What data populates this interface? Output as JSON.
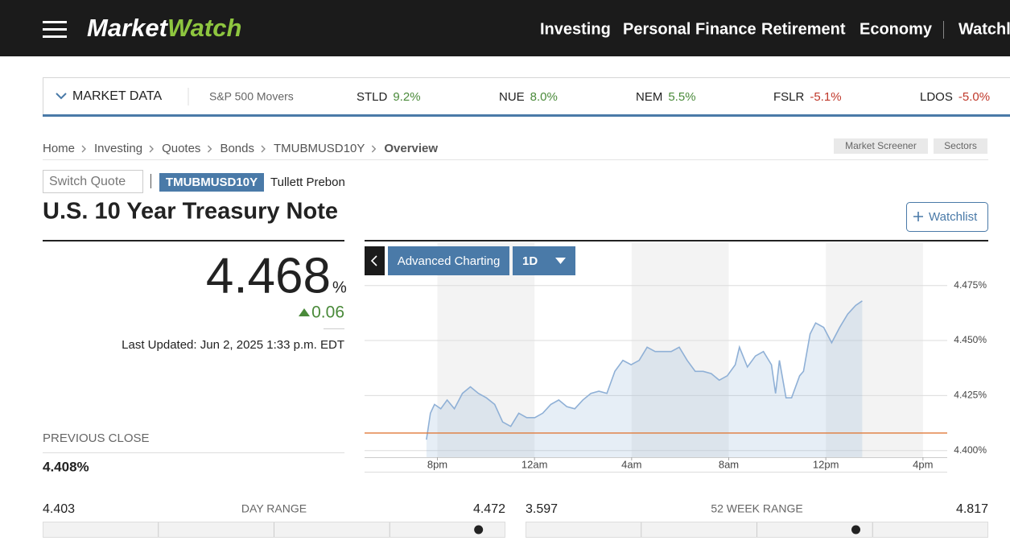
{
  "header": {
    "brand": [
      "Market",
      "Watch"
    ],
    "nav": [
      "Investing",
      "Personal Finance",
      "Retirement",
      "Economy",
      "Watchlist"
    ]
  },
  "ticker_bar": {
    "label": "MARKET DATA",
    "group": "S&P 500 Movers",
    "items": [
      {
        "symbol": "STLD",
        "change": "9.2%"
      },
      {
        "symbol": "NUE",
        "change": "8.0%"
      },
      {
        "symbol": "NEM",
        "change": "5.5%"
      },
      {
        "symbol": "FSLR",
        "change": "-5.1%"
      },
      {
        "symbol": "LDOS",
        "change": "-5.0%"
      }
    ]
  },
  "breadcrumb": [
    "Home",
    "Investing",
    "Quotes",
    "Bonds",
    "TMUBMUSD10Y",
    "Overview"
  ],
  "tools": [
    "Market Screener",
    "Sectors"
  ],
  "quote": {
    "search_placeholder": "Switch Quote",
    "symbol": "TMUBMUSD10Y",
    "source": "Tullett Prebon",
    "title": "U.S. 10 Year Treasury Note",
    "watchlist_button": "Watchlist",
    "price": "4.468",
    "price_unit": "%",
    "change": "0.06",
    "last_updated": "Last Updated: Jun 2, 2025 1:33 p.m. EDT",
    "previous_close_label": "PREVIOUS CLOSE",
    "previous_close": "4.408%",
    "day_range": {
      "low": "4.403",
      "label": "DAY RANGE",
      "high": "4.472"
    },
    "week52_range": {
      "low": "3.597",
      "label": "52 WEEK RANGE",
      "high": "4.817"
    }
  },
  "chart_controls": {
    "advanced": "Advanced Charting",
    "period": "1D"
  },
  "chart_data": {
    "type": "line",
    "x": [
      -4.45,
      -4.29,
      -4.12,
      -3.86,
      -3.6,
      -3.3,
      -2.97,
      -2.64,
      -2.31,
      -1.98,
      -1.64,
      -1.31,
      -0.98,
      -0.65,
      -0.32,
      0.01,
      0.34,
      0.67,
      1.0,
      1.33,
      1.66,
      1.99,
      2.32,
      2.65,
      2.98,
      3.31,
      3.64,
      3.98,
      4.31,
      4.64,
      4.97,
      5.3,
      5.63,
      5.96,
      6.29,
      6.62,
      6.95,
      7.28,
      7.61,
      7.94,
      8.27,
      8.44,
      8.77,
      9.1,
      9.43,
      9.76,
      9.93,
      10.09,
      10.36,
      10.59,
      10.92,
      11.08,
      11.35,
      11.58,
      11.91,
      12.24,
      12.57,
      12.9,
      13.23,
      13.5
    ],
    "series": [
      {
        "color": "#8fb0d6",
        "values": [
          4.405,
          4.417,
          4.421,
          4.419,
          4.423,
          4.419,
          4.426,
          4.429,
          4.426,
          4.424,
          4.421,
          4.413,
          4.411,
          4.417,
          4.415,
          4.415,
          4.417,
          4.421,
          4.423,
          4.42,
          4.419,
          4.423,
          4.426,
          4.427,
          4.426,
          4.436,
          4.441,
          4.439,
          4.441,
          4.447,
          4.445,
          4.445,
          4.445,
          4.447,
          4.441,
          4.436,
          4.436,
          4.435,
          4.432,
          4.434,
          4.439,
          4.447,
          4.438,
          4.443,
          4.445,
          4.439,
          4.426,
          4.441,
          4.424,
          4.424,
          4.434,
          4.436,
          4.453,
          4.458,
          4.456,
          4.449,
          4.456,
          4.462,
          4.466,
          4.468
        ]
      }
    ],
    "reference_line": {
      "value": 4.408,
      "color": "#e07a3a"
    },
    "xlim": [
      -7,
      17
    ],
    "xticks": [
      {
        "value": -4,
        "label": "8pm"
      },
      {
        "value": 0,
        "label": "12am"
      },
      {
        "value": 4,
        "label": "4am"
      },
      {
        "value": 8,
        "label": "8am"
      },
      {
        "value": 12,
        "label": "12pm"
      },
      {
        "value": 16,
        "label": "4pm"
      }
    ],
    "ylim": [
      4.397,
      4.495
    ],
    "yticks": [
      {
        "value": 4.4,
        "label": "4.400%"
      },
      {
        "value": 4.425,
        "label": "4.425%"
      },
      {
        "value": 4.45,
        "label": "4.450%"
      },
      {
        "value": 4.475,
        "label": "4.475%"
      }
    ],
    "grid": true
  }
}
